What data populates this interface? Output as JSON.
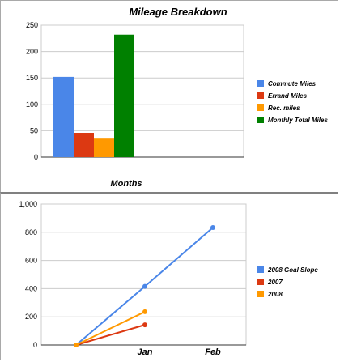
{
  "chart_data": [
    {
      "type": "bar",
      "title": "Mileage Breakdown",
      "xlabel": "Months",
      "ylabel": "",
      "ylim": [
        0,
        250
      ],
      "yticks": [
        0,
        50,
        100,
        150,
        200,
        250
      ],
      "categories": [
        ""
      ],
      "series": [
        {
          "name": "Commute Miles",
          "values": [
            152
          ],
          "color": "#4a86e8"
        },
        {
          "name": "Errand Miles",
          "values": [
            46
          ],
          "color": "#dc3912"
        },
        {
          "name": "Rec. miles",
          "values": [
            35
          ],
          "color": "#ff9900"
        },
        {
          "name": "Monthly Total Miles",
          "values": [
            232
          ],
          "color": "#008000"
        }
      ],
      "grid": true,
      "legend": "right"
    },
    {
      "type": "line",
      "title": "",
      "xlabel": "",
      "ylabel": "",
      "ylim": [
        0,
        1000
      ],
      "yticks": [
        0,
        200,
        400,
        600,
        800,
        1000
      ],
      "ytick_labels": [
        "0",
        "200",
        "400",
        "600",
        "800",
        "1,000"
      ],
      "categories": [
        "",
        "Jan",
        "Feb"
      ],
      "series": [
        {
          "name": "2008 Goal Slope",
          "values": [
            0,
            416,
            833
          ],
          "color": "#4a86e8"
        },
        {
          "name": "2007",
          "values": [
            0,
            143,
            null
          ],
          "color": "#dc3912"
        },
        {
          "name": "2008",
          "values": [
            0,
            236,
            null
          ],
          "color": "#ff9900"
        }
      ],
      "grid": true,
      "legend": "right"
    }
  ]
}
